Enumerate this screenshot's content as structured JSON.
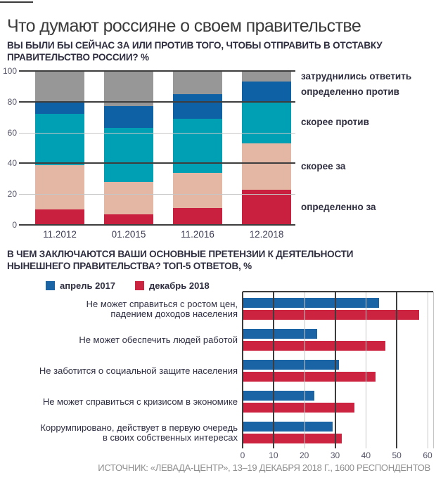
{
  "page": {
    "title": "Что думают россияне о своем правительстве",
    "source": "ИСТОЧНИК: «ЛЕВАДА-ЦЕНТР», 13–19 ДЕКАБРЯ 2018 Г., 1600 РЕСПОНДЕНТОВ"
  },
  "colors": {
    "grid_dark": "#3d3d3d",
    "grid_light": "#c6c6c6",
    "axis_text": "#55556a",
    "category_text": "#3c3c55",
    "heading_text": "#2e2e40",
    "title_text": "#3b3b3b",
    "source_text": "#8f8f8f"
  },
  "chart_data": [
    {
      "type": "bar",
      "variant": "stacked-column",
      "title": "ВЫ БЫЛИ БЫ СЕЙЧАС ЗА ИЛИ ПРОТИВ ТОГО, ЧТОБЫ ОТПРАВИТЬ В ОТСТАВКУ ПРАВИТЕЛЬСТВО РОССИИ? %",
      "title_lines": [
        "ВЫ БЫЛИ БЫ СЕЙЧАС ЗА ИЛИ ПРОТИВ ТОГО, ЧТОБЫ ОТПРАВИТЬ В ОТСТАВКУ",
        "ПРАВИТЕЛЬСТВО РОССИИ? %"
      ],
      "categories": [
        "11.2012",
        "01.2015",
        "11.2016",
        "12.2018"
      ],
      "series": [
        {
          "name": "определенно за",
          "color": "#c8203e",
          "values": [
            10,
            7,
            11,
            23
          ]
        },
        {
          "name": "скорее за",
          "color": "#e3b7a4",
          "values": [
            29,
            21,
            23,
            30
          ]
        },
        {
          "name": "скорее против",
          "color": "#00a0b4",
          "values": [
            33,
            35,
            35,
            27
          ]
        },
        {
          "name": "определенно против",
          "color": "#0e61a5",
          "values": [
            8,
            14,
            16,
            13
          ]
        },
        {
          "name": "затруднились ответить",
          "color": "#979797",
          "values": [
            20,
            23,
            15,
            7
          ]
        }
      ],
      "ylim": [
        0,
        100
      ],
      "yticks": [
        0,
        20,
        40,
        60,
        80,
        100
      ],
      "grid": true,
      "legend_position": "right"
    },
    {
      "type": "bar",
      "variant": "grouped-horizontal",
      "title": "В ЧЕМ ЗАКЛЮЧАЮТСЯ ВАШИ ОСНОВНЫЕ ПРЕТЕНЗИИ К ДЕЯТЕЛЬНОСТИ НЫНЕШНЕГО ПРАВИТЕЛЬСТВА? ТОП-5 ОТВЕТОВ, %",
      "title_lines": [
        "В ЧЕМ ЗАКЛЮЧАЮТСЯ ВАШИ ОСНОВНЫЕ ПРЕТЕНЗИИ К ДЕЯТЕЛЬНОСТИ",
        "НЫНЕШНЕГО ПРАВИТЕЛЬСТВА? ТОП-5 ОТВЕТОВ, %"
      ],
      "categories": [
        "Не может справиться с ростом цен, падением доходов населения",
        "Не может обеспечить людей работой",
        "Не заботится о социальной защите населения",
        "Не может справиться с кризисом в экономике",
        "Коррумпировано, действует в первую очередь в своих собственных интересах"
      ],
      "categories_lines": [
        [
          "Не может справиться с ростом цен,",
          "падением доходов населения"
        ],
        [
          "Не может обеспечить людей работой"
        ],
        [
          "Не заботится о социальной защите населения"
        ],
        [
          "Не может справиться с кризисом в экономике"
        ],
        [
          "Коррумпировано, действует в первую очередь",
          "в своих собственных интересах"
        ]
      ],
      "series": [
        {
          "name": "апрель 2017",
          "color": "#1a64a5",
          "values": [
            44,
            24,
            31,
            23,
            29
          ]
        },
        {
          "name": "декабрь 2018",
          "color": "#cc2340",
          "values": [
            57,
            46,
            43,
            36,
            32
          ]
        }
      ],
      "xlim": [
        0,
        60
      ],
      "xticks": [
        0,
        10,
        20,
        30,
        40,
        50,
        60
      ],
      "grid": true,
      "legend_position": "top-left"
    }
  ]
}
